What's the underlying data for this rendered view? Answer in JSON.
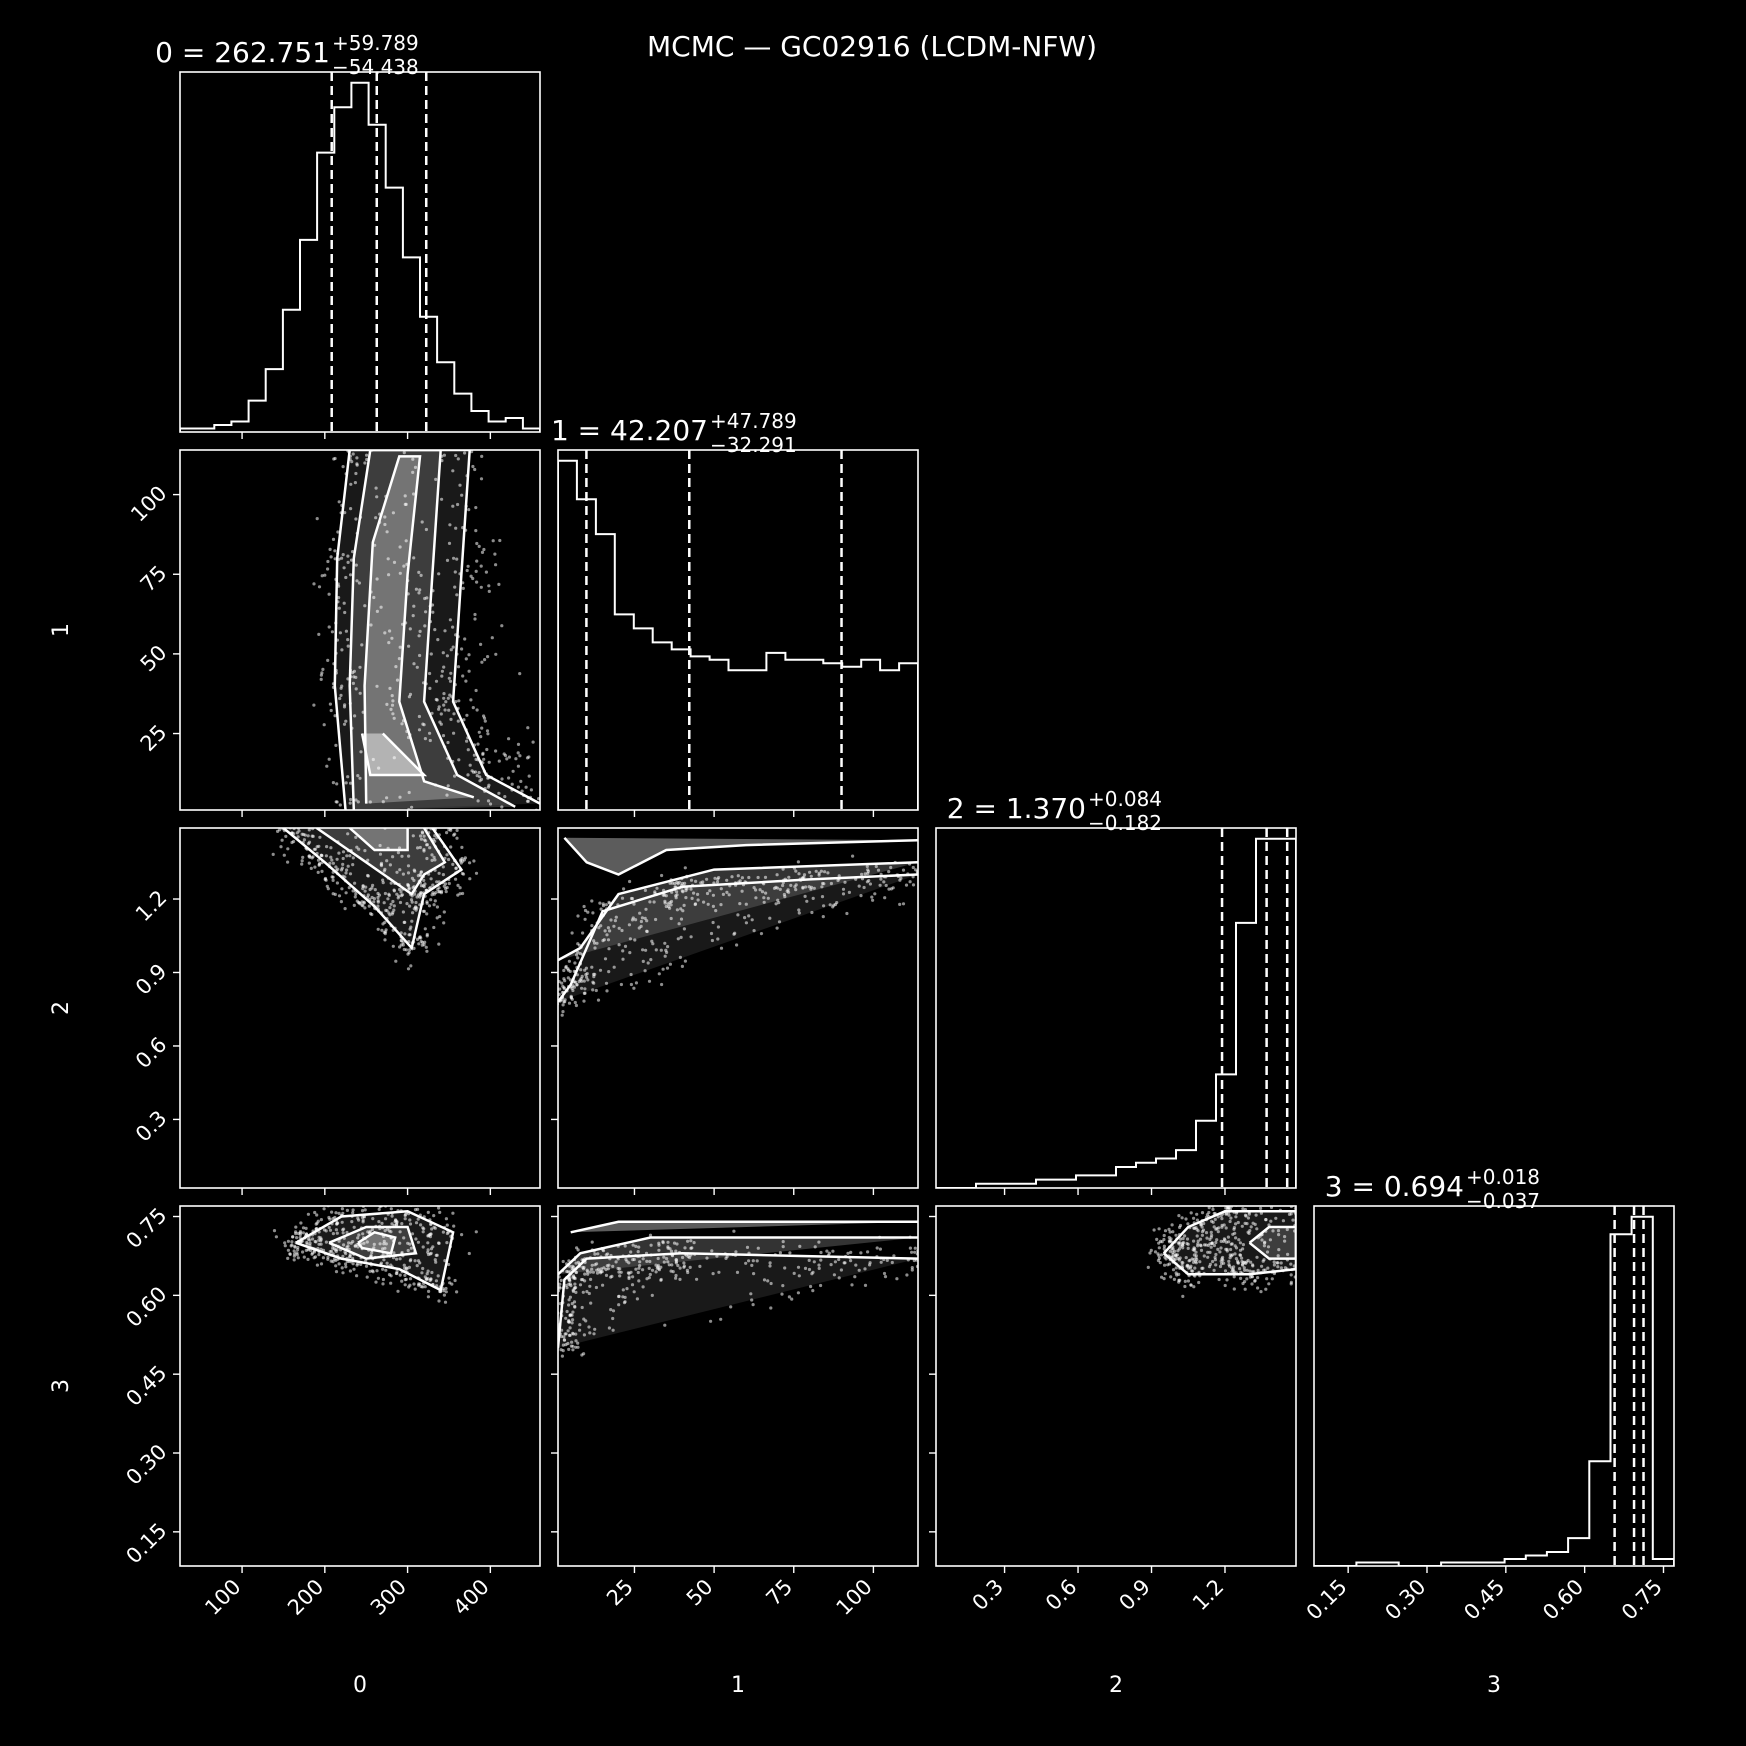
{
  "figure_title": "MCMC — GC02916 (LCDM-NFW)",
  "colors": {
    "background": "#000000",
    "foreground": "#ffffff"
  },
  "chart_data": {
    "type": "corner",
    "title": "MCMC — GC02916 (LCDM-NFW)",
    "parameters": [
      "0",
      "1",
      "2",
      "3"
    ],
    "ranges": [
      [
        25,
        460
      ],
      [
        1,
        114
      ],
      [
        0.02,
        1.49
      ],
      [
        0.085,
        0.77
      ]
    ],
    "ticks": [
      [
        100,
        200,
        300,
        400
      ],
      [
        25,
        50,
        75,
        100
      ],
      [
        0.3,
        0.6,
        0.9,
        1.2
      ],
      [
        0.15,
        0.3,
        0.45,
        0.6,
        0.75
      ]
    ],
    "tick_labels": [
      [
        "100",
        "200",
        "300",
        "400"
      ],
      [
        "25",
        "50",
        "75",
        "100"
      ],
      [
        "0.3",
        "0.6",
        "0.9",
        "1.2"
      ],
      [
        "0.15",
        "0.30",
        "0.45",
        "0.60",
        "0.75"
      ]
    ],
    "summaries": [
      {
        "label": "0 = 262.751",
        "sup": "+59.789",
        "sub": "−54.438",
        "median": 262.751,
        "plus": 59.789,
        "minus": 54.438
      },
      {
        "label": "1 = 42.207",
        "sup": "+47.789",
        "sub": "−32.291",
        "median": 42.207,
        "plus": 47.789,
        "minus": 32.291
      },
      {
        "label": "2 = 1.370",
        "sup": "+0.084",
        "sub": "−0.182",
        "median": 1.37,
        "plus": 0.084,
        "minus": 0.182
      },
      {
        "label": "3 = 0.694",
        "sup": "+0.018",
        "sub": "−0.037",
        "median": 0.694,
        "plus": 0.018,
        "minus": 0.037
      }
    ],
    "histograms": [
      {
        "bins": [
          25,
          460
        ],
        "counts": [
          0.01,
          0.01,
          0.02,
          0.03,
          0.09,
          0.18,
          0.35,
          0.55,
          0.8,
          0.93,
          1.0,
          0.88,
          0.7,
          0.5,
          0.33,
          0.2,
          0.11,
          0.06,
          0.03,
          0.04,
          0.01
        ]
      },
      {
        "bins": [
          1,
          114
        ],
        "counts": [
          1.0,
          0.89,
          0.79,
          0.56,
          0.52,
          0.48,
          0.46,
          0.44,
          0.43,
          0.4,
          0.4,
          0.45,
          0.43,
          0.43,
          0.42,
          0.41,
          0.43,
          0.4,
          0.42
        ]
      },
      {
        "bins": [
          0.02,
          1.49
        ],
        "counts": [
          0.0,
          0.0,
          0.01,
          0.01,
          0.01,
          0.02,
          0.02,
          0.03,
          0.03,
          0.05,
          0.06,
          0.07,
          0.09,
          0.16,
          0.27,
          0.63,
          0.83,
          0.83
        ]
      },
      {
        "bins": [
          0.085,
          0.77
        ],
        "counts": [
          0.0,
          0.0,
          0.01,
          0.01,
          0.0,
          0.0,
          0.01,
          0.01,
          0.01,
          0.02,
          0.03,
          0.04,
          0.08,
          0.3,
          0.95,
          1.0,
          0.02
        ]
      }
    ],
    "contours": [
      {
        "row": 1,
        "col": 0,
        "levels": [
          [
            [
              225,
              1
            ],
            [
              212,
              40
            ],
            [
              215,
              80
            ],
            [
              230,
              114
            ],
            [
              375,
              114
            ],
            [
              365,
              75
            ],
            [
              355,
              35
            ],
            [
              395,
              12
            ],
            [
              460,
              3
            ]
          ],
          [
            [
              235,
              1
            ],
            [
              230,
              40
            ],
            [
              235,
              80
            ],
            [
              255,
              114
            ],
            [
              340,
              114
            ],
            [
              330,
              75
            ],
            [
              320,
              35
            ],
            [
              360,
              12
            ],
            [
              430,
              2
            ]
          ],
          [
            [
              250,
              3
            ],
            [
              248,
              40
            ],
            [
              258,
              85
            ],
            [
              290,
              112
            ],
            [
              315,
              112
            ],
            [
              300,
              75
            ],
            [
              290,
              35
            ],
            [
              320,
              10
            ],
            [
              380,
              5
            ]
          ],
          [
            [
              245,
              25
            ],
            [
              255,
              12
            ],
            [
              320,
              12
            ],
            [
              270,
              25
            ]
          ]
        ]
      },
      {
        "row": 2,
        "col": 0,
        "levels": [
          [
            [
              150,
              1.49
            ],
            [
              200,
              1.35
            ],
            [
              260,
              1.17
            ],
            [
              305,
              1.0
            ],
            [
              320,
              1.22
            ],
            [
              365,
              1.32
            ],
            [
              330,
              1.49
            ]
          ],
          [
            [
              190,
              1.49
            ],
            [
              250,
              1.35
            ],
            [
              305,
              1.22
            ],
            [
              320,
              1.3
            ],
            [
              345,
              1.35
            ],
            [
              320,
              1.49
            ]
          ],
          [
            [
              230,
              1.49
            ],
            [
              260,
              1.4
            ],
            [
              300,
              1.4
            ],
            [
              300,
              1.49
            ]
          ]
        ]
      },
      {
        "row": 2,
        "col": 1,
        "levels": [
          [
            [
              1,
              0.78
            ],
            [
              5,
              0.85
            ],
            [
              15,
              1.15
            ],
            [
              40,
              1.25
            ],
            [
              80,
              1.28
            ],
            [
              114,
              1.3
            ]
          ],
          [
            [
              1,
              0.95
            ],
            [
              8,
              1.0
            ],
            [
              20,
              1.22
            ],
            [
              50,
              1.32
            ],
            [
              114,
              1.35
            ]
          ],
          [
            [
              3,
              1.45
            ],
            [
              10,
              1.35
            ],
            [
              20,
              1.3
            ],
            [
              35,
              1.4
            ],
            [
              60,
              1.42
            ],
            [
              114,
              1.44
            ]
          ]
        ]
      },
      {
        "row": 3,
        "col": 0,
        "levels": [
          [
            [
              165,
              0.7
            ],
            [
              220,
              0.75
            ],
            [
              300,
              0.76
            ],
            [
              355,
              0.72
            ],
            [
              340,
              0.61
            ],
            [
              290,
              0.65
            ],
            [
              220,
              0.67
            ],
            [
              165,
              0.7
            ]
          ],
          [
            [
              205,
              0.7
            ],
            [
              250,
              0.73
            ],
            [
              300,
              0.73
            ],
            [
              310,
              0.68
            ],
            [
              250,
              0.67
            ],
            [
              205,
              0.7
            ]
          ],
          [
            [
              240,
              0.7
            ],
            [
              260,
              0.72
            ],
            [
              285,
              0.71
            ],
            [
              280,
              0.68
            ],
            [
              245,
              0.69
            ],
            [
              240,
              0.7
            ]
          ]
        ]
      },
      {
        "row": 3,
        "col": 1,
        "levels": [
          [
            [
              1,
              0.5
            ],
            [
              3,
              0.63
            ],
            [
              10,
              0.67
            ],
            [
              40,
              0.68
            ],
            [
              114,
              0.67
            ]
          ],
          [
            [
              1,
              0.64
            ],
            [
              8,
              0.68
            ],
            [
              30,
              0.71
            ],
            [
              70,
              0.71
            ],
            [
              114,
              0.71
            ]
          ],
          [
            [
              5,
              0.72
            ],
            [
              20,
              0.74
            ],
            [
              70,
              0.74
            ],
            [
              114,
              0.74
            ]
          ]
        ]
      },
      {
        "row": 3,
        "col": 2,
        "levels": [
          [
            [
              0.95,
              0.68
            ],
            [
              1.05,
              0.73
            ],
            [
              1.2,
              0.76
            ],
            [
              1.49,
              0.76
            ],
            [
              1.49,
              0.65
            ],
            [
              1.3,
              0.64
            ],
            [
              1.05,
              0.64
            ],
            [
              0.95,
              0.68
            ]
          ],
          [
            [
              1.3,
              0.7
            ],
            [
              1.38,
              0.73
            ],
            [
              1.49,
              0.73
            ],
            [
              1.49,
              0.67
            ],
            [
              1.38,
              0.67
            ],
            [
              1.3,
              0.7
            ]
          ]
        ]
      }
    ]
  }
}
